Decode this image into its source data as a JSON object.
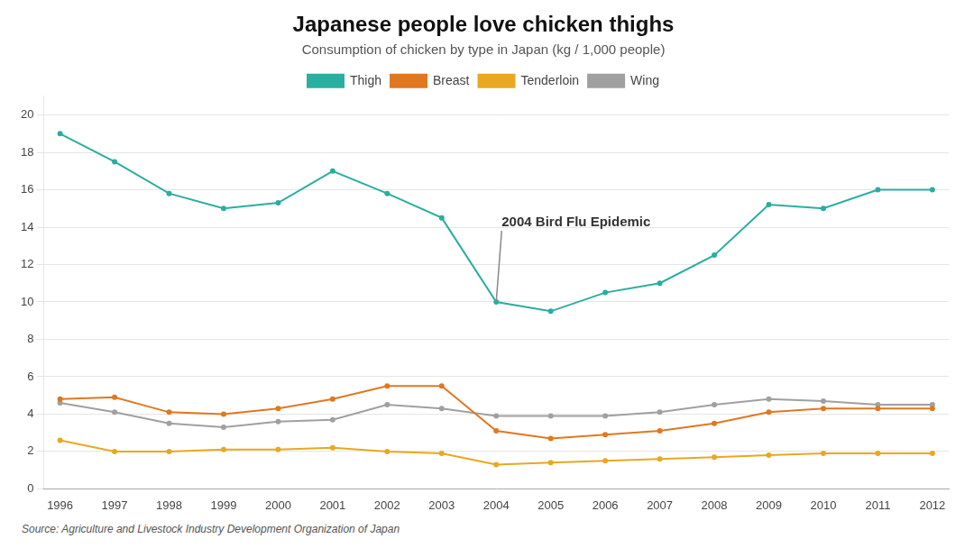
{
  "chart_data": {
    "type": "line",
    "title": "Japanese people love chicken thighs",
    "subtitle": "Consumption of chicken by type in Japan (kg / 1,000 people)",
    "source": "Source: Agriculture and Livestock Industry Development Organization of Japan",
    "x": [
      1996,
      1997,
      1998,
      1999,
      2000,
      2001,
      2002,
      2003,
      2004,
      2005,
      2006,
      2007,
      2008,
      2009,
      2010,
      2011,
      2012
    ],
    "series": [
      {
        "name": "Thigh",
        "color": "#2AAEA0",
        "values": [
          19.0,
          17.5,
          15.8,
          15.0,
          15.3,
          17.0,
          15.8,
          14.5,
          10.0,
          9.5,
          10.5,
          11.0,
          12.5,
          15.2,
          15.0,
          16.0,
          16.0
        ]
      },
      {
        "name": "Breast",
        "color": "#E07820",
        "values": [
          4.8,
          4.9,
          4.1,
          4.0,
          4.3,
          4.8,
          5.5,
          5.5,
          3.1,
          2.7,
          2.9,
          3.1,
          3.5,
          4.1,
          4.3,
          4.3,
          4.3
        ]
      },
      {
        "name": "Tenderloin",
        "color": "#E8A820",
        "values": [
          2.6,
          2.0,
          2.0,
          2.1,
          2.1,
          2.2,
          2.0,
          1.9,
          1.3,
          1.4,
          1.5,
          1.6,
          1.7,
          1.8,
          1.9,
          1.9,
          1.9
        ]
      },
      {
        "name": "Wing",
        "color": "#A0A0A0",
        "values": [
          4.6,
          4.1,
          3.5,
          3.3,
          3.6,
          3.7,
          4.5,
          4.3,
          3.9,
          3.9,
          3.9,
          4.1,
          4.5,
          4.8,
          4.7,
          4.5,
          4.5
        ]
      }
    ],
    "xlim": [
      1995.7,
      2012.3
    ],
    "xticks": [
      1996,
      1997,
      1998,
      1999,
      2000,
      2001,
      2002,
      2003,
      2004,
      2005,
      2006,
      2007,
      2008,
      2009,
      2010,
      2011,
      2012
    ],
    "ylim": [
      0,
      21
    ],
    "yticks": [
      0,
      2,
      4,
      6,
      8,
      10,
      12,
      14,
      16,
      18,
      20
    ],
    "grid": true,
    "legend": "top",
    "annotations": [
      {
        "text": "2004 Bird Flu Epidemic",
        "x": 2004,
        "y": 10.0,
        "text_x": 2004.1,
        "text_y": 13.8
      }
    ]
  }
}
